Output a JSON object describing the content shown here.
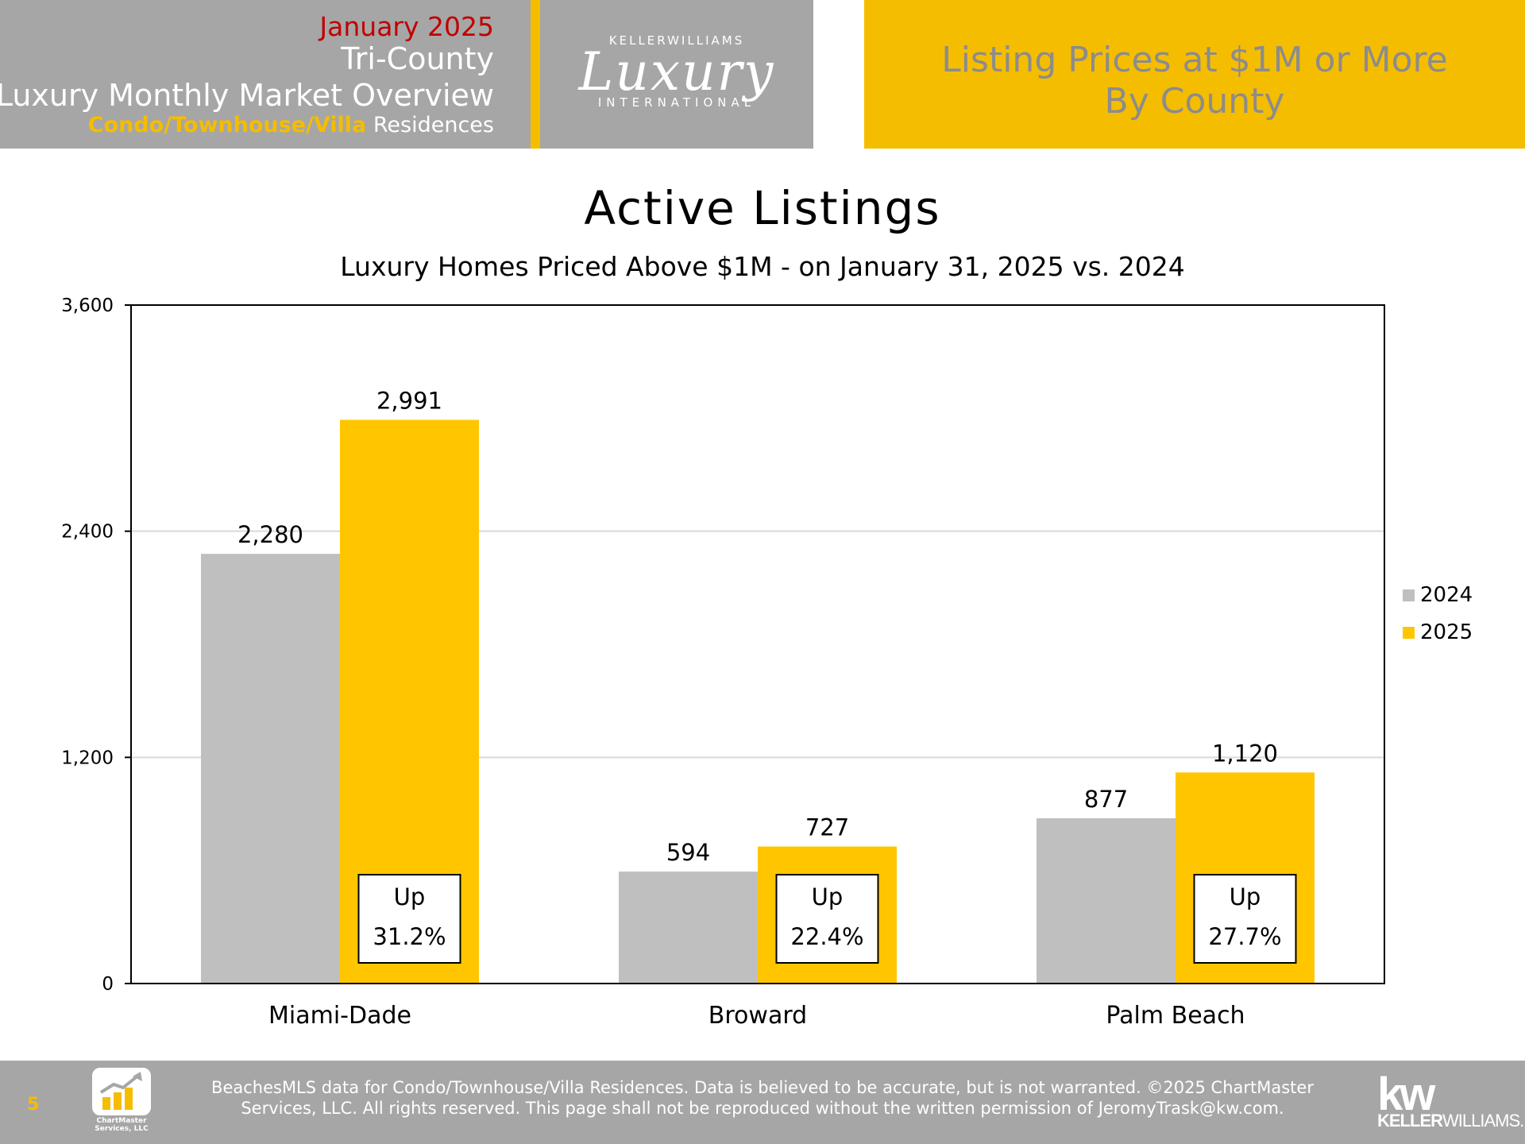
{
  "header": {
    "month": "January 2025",
    "region": "Tri-County",
    "report_title": "Luxury Monthly Market Overview",
    "property_type": "Condo/Townhouse/Villa",
    "residences": "Residences",
    "logo_top": "KELLERWILLIAMS",
    "logo_main": "Luxury",
    "logo_bottom": "INTERNATIONAL",
    "right_title_line1": "Listing Prices at $1M or More",
    "right_title_line2": "By County"
  },
  "colors": {
    "brand_gold": "#f5bd00",
    "header_gray": "#a6a6a6",
    "series_2024": "#bfbfbf",
    "series_2025": "#ffc600",
    "month_red": "#c00000"
  },
  "chart_data": {
    "type": "bar",
    "title": "Active Listings",
    "subtitle": "Luxury Homes Priced Above $1M - on January 31,  2025 vs. 2024",
    "categories": [
      "Miami-Dade",
      "Broward",
      "Palm Beach"
    ],
    "series": [
      {
        "name": "2024",
        "values": [
          2280,
          594,
          877
        ],
        "labels": [
          "2,280",
          "594",
          "877"
        ]
      },
      {
        "name": "2025",
        "values": [
          2991,
          727,
          1120
        ],
        "labels": [
          "2,991",
          "727",
          "1,120"
        ]
      }
    ],
    "change_boxes": [
      {
        "direction": "Up",
        "pct": "31.2%"
      },
      {
        "direction": "Up",
        "pct": "22.4%"
      },
      {
        "direction": "Up",
        "pct": "27.7%"
      }
    ],
    "yticks": [
      0,
      1200,
      2400,
      3600
    ],
    "ytick_labels": [
      "0",
      "1,200",
      "2,400",
      "3,600"
    ],
    "ylim": [
      0,
      3600
    ],
    "grid": true,
    "legend_position": "right"
  },
  "footer": {
    "page_number": "5",
    "logo_caption_line1": "ChartMaster",
    "logo_caption_line2": "Services, LLC",
    "disclaimer_line1": "BeachesMLS data for Condo/Townhouse/Villa Residences.  Data is believed to be accurate, but is not warranted.   ©2025  ChartMaster",
    "disclaimer_line2": "Services, LLC.  All rights reserved. This page shall not be reproduced without the written permission of JeromyTrask@kw.com.",
    "kw_mark": "kw",
    "kw_name_bold": "KELLER",
    "kw_name_rest": "WILLIAMS."
  }
}
